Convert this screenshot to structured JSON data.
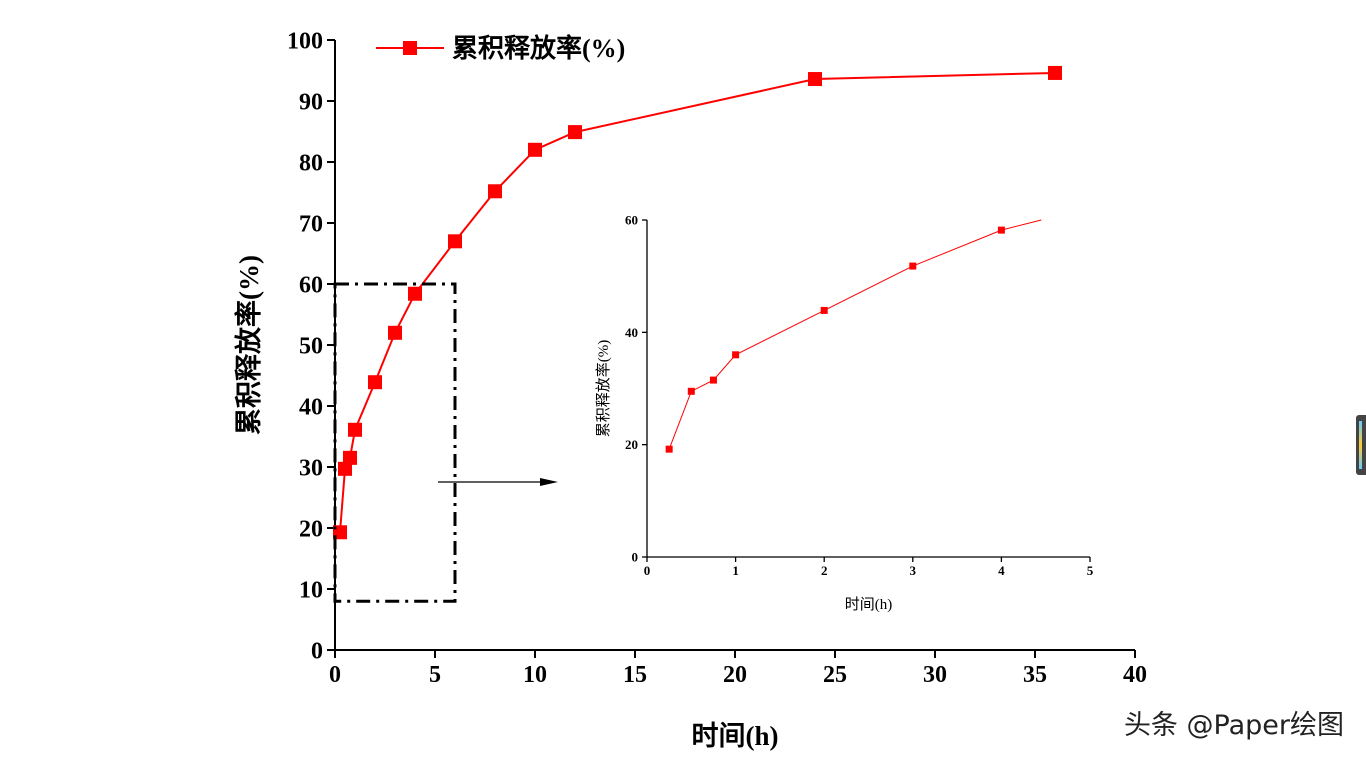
{
  "chart_data": [
    {
      "type": "line",
      "title": "",
      "xlabel": "时间(h)",
      "ylabel": "累积释放率(%)",
      "xlim": [
        0,
        40
      ],
      "ylim": [
        0,
        100
      ],
      "xticks": [
        "0",
        "5",
        "10",
        "15",
        "20",
        "25",
        "30",
        "35",
        "40"
      ],
      "yticks": [
        "0",
        "10",
        "20",
        "30",
        "40",
        "50",
        "60",
        "70",
        "80",
        "90",
        "100"
      ],
      "legend": {
        "label": "累积释放率(%)",
        "placement": "top-left"
      },
      "series": [
        {
          "name": "累积释放率(%)",
          "color": "#ff0000",
          "marker": "square",
          "x": [
            0.25,
            0.5,
            0.75,
            1,
            2,
            3,
            4,
            6,
            8,
            10,
            12,
            24,
            36
          ],
          "y": [
            19.3,
            29.7,
            31.5,
            36.1,
            43.9,
            52.0,
            58.4,
            67.0,
            75.2,
            82.0,
            84.9,
            93.6,
            94.6
          ]
        }
      ],
      "annotation": {
        "type": "dash-dot zoom box",
        "x_range": [
          0,
          6
        ],
        "y_range": [
          8,
          60
        ]
      }
    },
    {
      "type": "line",
      "title": "",
      "xlabel": "时间(h)",
      "ylabel": "累积释放率(%)",
      "xlim": [
        0,
        5
      ],
      "ylim": [
        0,
        60
      ],
      "xticks": [
        "0",
        "1",
        "2",
        "3",
        "4",
        "5"
      ],
      "yticks": [
        "0",
        "20",
        "40",
        "60"
      ],
      "series": [
        {
          "name": "累积释放率(%)",
          "color": "#ff0000",
          "marker": "square",
          "x": [
            0.25,
            0.5,
            0.75,
            1,
            2,
            3,
            4,
            4.45
          ],
          "y": [
            19.2,
            29.5,
            31.5,
            36.0,
            43.9,
            51.8,
            58.2,
            60
          ]
        }
      ]
    }
  ],
  "watermark": "头条 @Paper绘图"
}
